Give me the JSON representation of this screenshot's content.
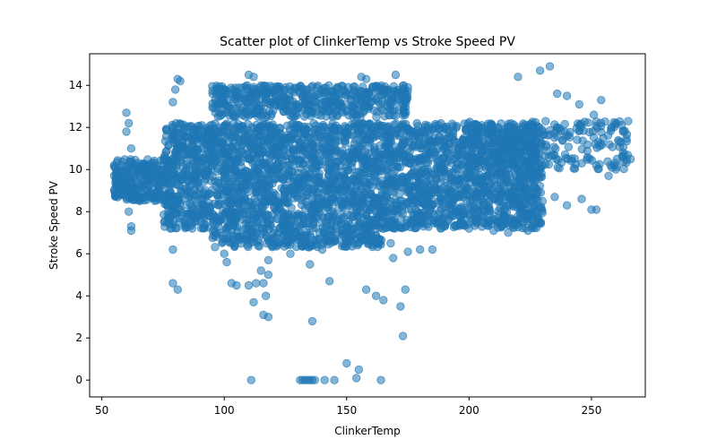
{
  "chart_data": {
    "type": "scatter",
    "title": "Scatter plot of ClinkerTemp vs Stroke Speed PV",
    "xlabel": "ClinkerTemp",
    "ylabel": "Stroke Speed PV",
    "xlim": [
      45,
      272
    ],
    "ylim": [
      -0.8,
      15.5
    ],
    "x_ticks": [
      50,
      100,
      150,
      200,
      250
    ],
    "y_ticks": [
      0,
      2,
      4,
      6,
      8,
      10,
      12,
      14
    ],
    "grid": false,
    "legend": "none",
    "marker_color": "#1f77b4",
    "marker_alpha": 0.55,
    "dense_clusters": [
      {
        "x_range": [
          75,
          230
        ],
        "y_range": [
          7.2,
          12.2
        ],
        "density": "very high"
      },
      {
        "x_range": [
          55,
          75
        ],
        "y_range": [
          8.5,
          10.5
        ],
        "density": "medium"
      },
      {
        "x_range": [
          95,
          165
        ],
        "y_range": [
          6.3,
          7.2
        ],
        "density": "medium"
      },
      {
        "x_range": [
          95,
          175
        ],
        "y_range": [
          12.5,
          14.0
        ],
        "density": "high"
      },
      {
        "x_range": [
          200,
          265
        ],
        "y_range": [
          10.0,
          12.3
        ],
        "density": "medium"
      }
    ],
    "points": [
      {
        "x": 55,
        "y": 9.0
      },
      {
        "x": 55,
        "y": 10.2
      },
      {
        "x": 57,
        "y": 9.5
      },
      {
        "x": 60,
        "y": 12.7
      },
      {
        "x": 61,
        "y": 12.2
      },
      {
        "x": 60,
        "y": 11.8
      },
      {
        "x": 62,
        "y": 11.0
      },
      {
        "x": 61,
        "y": 8.0
      },
      {
        "x": 62,
        "y": 7.3
      },
      {
        "x": 62,
        "y": 7.1
      },
      {
        "x": 64,
        "y": 8.6
      },
      {
        "x": 65,
        "y": 10.1
      },
      {
        "x": 79,
        "y": 13.2
      },
      {
        "x": 80,
        "y": 13.8
      },
      {
        "x": 81,
        "y": 14.3
      },
      {
        "x": 82,
        "y": 14.2
      },
      {
        "x": 79,
        "y": 6.2
      },
      {
        "x": 78,
        "y": 7.2
      },
      {
        "x": 79,
        "y": 4.6
      },
      {
        "x": 81,
        "y": 4.3
      },
      {
        "x": 100,
        "y": 6.0
      },
      {
        "x": 101,
        "y": 5.6
      },
      {
        "x": 103,
        "y": 4.6
      },
      {
        "x": 105,
        "y": 4.5
      },
      {
        "x": 110,
        "y": 4.5
      },
      {
        "x": 113,
        "y": 4.6
      },
      {
        "x": 115,
        "y": 5.2
      },
      {
        "x": 116,
        "y": 4.6
      },
      {
        "x": 117,
        "y": 4.0
      },
      {
        "x": 118,
        "y": 5.0
      },
      {
        "x": 112,
        "y": 3.7
      },
      {
        "x": 116,
        "y": 3.1
      },
      {
        "x": 118,
        "y": 3.0
      },
      {
        "x": 118,
        "y": 5.7
      },
      {
        "x": 111,
        "y": 0.0
      },
      {
        "x": 131,
        "y": 0.0
      },
      {
        "x": 132,
        "y": 0.0
      },
      {
        "x": 133,
        "y": 0.0
      },
      {
        "x": 134,
        "y": 0.0
      },
      {
        "x": 135,
        "y": 0.0
      },
      {
        "x": 136,
        "y": 0.0
      },
      {
        "x": 137,
        "y": 0.0
      },
      {
        "x": 141,
        "y": 0.0
      },
      {
        "x": 145,
        "y": 0.0
      },
      {
        "x": 136,
        "y": 2.8
      },
      {
        "x": 135,
        "y": 5.5
      },
      {
        "x": 143,
        "y": 4.7
      },
      {
        "x": 150,
        "y": 0.8
      },
      {
        "x": 155,
        "y": 0.5
      },
      {
        "x": 154,
        "y": 0.1
      },
      {
        "x": 164,
        "y": 0.0
      },
      {
        "x": 158,
        "y": 4.3
      },
      {
        "x": 162,
        "y": 4.0
      },
      {
        "x": 165,
        "y": 3.8
      },
      {
        "x": 172,
        "y": 3.5
      },
      {
        "x": 174,
        "y": 4.3
      },
      {
        "x": 173,
        "y": 2.1
      },
      {
        "x": 169,
        "y": 5.8
      },
      {
        "x": 127,
        "y": 6.0
      },
      {
        "x": 140,
        "y": 6.2
      },
      {
        "x": 110,
        "y": 14.5
      },
      {
        "x": 112,
        "y": 14.4
      },
      {
        "x": 156,
        "y": 14.4
      },
      {
        "x": 158,
        "y": 14.3
      },
      {
        "x": 170,
        "y": 14.5
      },
      {
        "x": 175,
        "y": 13.9
      },
      {
        "x": 220,
        "y": 14.4
      },
      {
        "x": 229,
        "y": 14.7
      },
      {
        "x": 233,
        "y": 14.9
      },
      {
        "x": 236,
        "y": 13.6
      },
      {
        "x": 240,
        "y": 13.5
      },
      {
        "x": 245,
        "y": 13.1
      },
      {
        "x": 254,
        "y": 13.3
      },
      {
        "x": 251,
        "y": 12.6
      },
      {
        "x": 260,
        "y": 12.2
      },
      {
        "x": 265,
        "y": 12.3
      },
      {
        "x": 262,
        "y": 11.3
      },
      {
        "x": 263,
        "y": 10.8
      },
      {
        "x": 266,
        "y": 10.5
      },
      {
        "x": 260,
        "y": 10.0
      },
      {
        "x": 257,
        "y": 9.7
      },
      {
        "x": 250,
        "y": 8.1
      },
      {
        "x": 252,
        "y": 8.1
      },
      {
        "x": 246,
        "y": 8.6
      },
      {
        "x": 240,
        "y": 8.3
      },
      {
        "x": 235,
        "y": 8.7
      },
      {
        "x": 230,
        "y": 8.5
      },
      {
        "x": 228,
        "y": 7.6
      },
      {
        "x": 224,
        "y": 7.1
      },
      {
        "x": 216,
        "y": 7.0
      },
      {
        "x": 210,
        "y": 7.1
      },
      {
        "x": 200,
        "y": 7.2
      },
      {
        "x": 185,
        "y": 6.2
      },
      {
        "x": 180,
        "y": 6.2
      },
      {
        "x": 175,
        "y": 6.1
      },
      {
        "x": 168,
        "y": 6.5
      }
    ]
  }
}
